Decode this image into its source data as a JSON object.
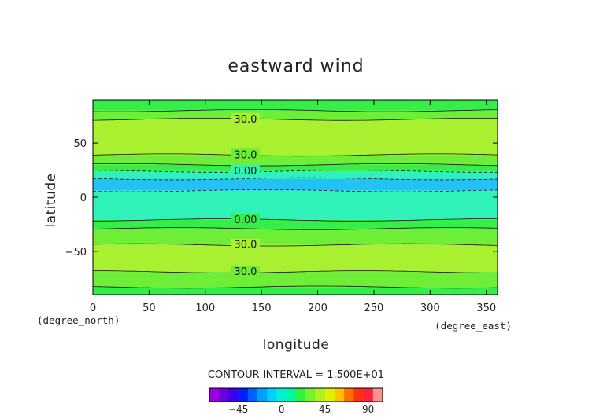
{
  "chart_data": {
    "type": "heatmap",
    "title": "eastward wind",
    "xlabel": "longitude",
    "ylabel": "latitude",
    "x_unit": "(degree_east)",
    "y_unit": "(degree_north)",
    "xlim": [
      0,
      360
    ],
    "ylim": [
      -90,
      90
    ],
    "x_ticks": [
      0,
      50,
      100,
      150,
      200,
      250,
      300,
      350
    ],
    "y_ticks": [
      -50,
      0,
      50
    ],
    "contour_interval_text": "CONTOUR INTERVAL = 1.500E+01",
    "contour_labels": [
      {
        "text": "30.0",
        "lon": 126,
        "lat": 72
      },
      {
        "text": "30.0",
        "lon": 126,
        "lat": 39
      },
      {
        "text": "0.00",
        "lon": 126,
        "lat": 24
      },
      {
        "text": "0.00",
        "lon": 126,
        "lat": -21
      },
      {
        "text": "30.0",
        "lon": 126,
        "lat": -44
      },
      {
        "text": "30.0",
        "lon": 126,
        "lat": -69
      }
    ],
    "bands": [
      {
        "lat_top": 90,
        "lat_bottom": 80,
        "level": "0-15"
      },
      {
        "lat_top": 80,
        "lat_bottom": 72,
        "level": "15-30"
      },
      {
        "lat_top": 72,
        "lat_bottom": 39,
        "level": "30-45"
      },
      {
        "lat_top": 39,
        "lat_bottom": 30,
        "level": "15-30"
      },
      {
        "lat_top": 30,
        "lat_bottom": 24,
        "level": "0-15"
      },
      {
        "lat_top": 24,
        "lat_bottom": 17,
        "level": "-15-0"
      },
      {
        "lat_top": 17,
        "lat_bottom": 6,
        "level": "-30--15"
      },
      {
        "lat_top": 6,
        "lat_bottom": -21,
        "level": "-15-0"
      },
      {
        "lat_top": -21,
        "lat_bottom": -29,
        "level": "0-15"
      },
      {
        "lat_top": -29,
        "lat_bottom": -44,
        "level": "15-30"
      },
      {
        "lat_top": -44,
        "lat_bottom": -69,
        "level": "30-45"
      },
      {
        "lat_top": -69,
        "lat_bottom": -83,
        "level": "15-30"
      },
      {
        "lat_top": -83,
        "lat_bottom": -90,
        "level": "0-15"
      }
    ],
    "colorbar": {
      "ticks": [
        -45,
        0,
        45,
        90
      ],
      "min": -75,
      "max": 105,
      "colors": [
        "#9a00e0",
        "#6a00e0",
        "#3a00f0",
        "#0020ff",
        "#0060ff",
        "#00a0ff",
        "#00d0ff",
        "#00f0d0",
        "#00f8a0",
        "#30f040",
        "#78f030",
        "#b0f020",
        "#e0f000",
        "#ffc000",
        "#ff7000",
        "#ff3010",
        "#ff2040",
        "#ff9090"
      ]
    },
    "level_colors": {
      "-30--15": "#22c2f4",
      "-15-0": "#2ef2b8",
      "0-15": "#36ee48",
      "15-30": "#6eee36",
      "30-45": "#a8f030"
    }
  }
}
